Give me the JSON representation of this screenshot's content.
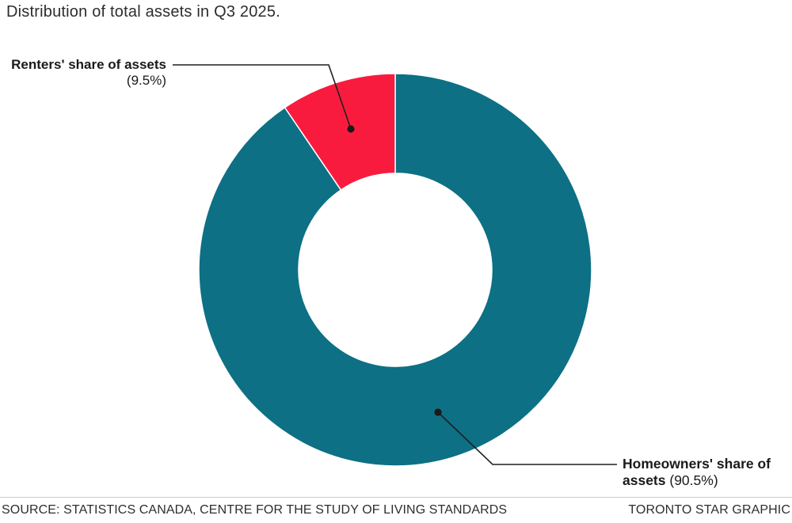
{
  "title": "Distribution of total assets in Q3 2025.",
  "chart_data": {
    "type": "pie",
    "subtype": "donut",
    "title": "Distribution of total assets in Q3 2025.",
    "start_angle_deg": 0,
    "direction": "clockwise",
    "inner_radius_ratio": 0.492,
    "slices": [
      {
        "label": "Homeowners' share of assets",
        "value": 90.5,
        "color": "#0d7084"
      },
      {
        "label": "Renters' share of assets",
        "value": 9.5,
        "color": "#f91b3e"
      }
    ],
    "legend_position": "none",
    "annotations": [
      "Renters' share of assets (9.5%)",
      "Homeowners' share of assets (90.5%)"
    ]
  },
  "callouts": {
    "renters": {
      "label": "Renters' share of assets",
      "value_text": "(9.5%)"
    },
    "homeowners": {
      "line1": "Homeowners' share of",
      "line2_bold": "assets",
      "value_text": "(90.5%)"
    }
  },
  "footer": {
    "source": "SOURCE: STATISTICS CANADA, CENTRE FOR THE STUDY OF LIVING STANDARDS",
    "credit": "TORONTO STAR GRAPHIC"
  },
  "colors": {
    "homeowners_teal": "#0d7084",
    "renters_red": "#f91b3e",
    "leader_line": "#1f1f1f",
    "title_text": "#2d2d2d",
    "footer_rule": "#c9c9c9"
  }
}
